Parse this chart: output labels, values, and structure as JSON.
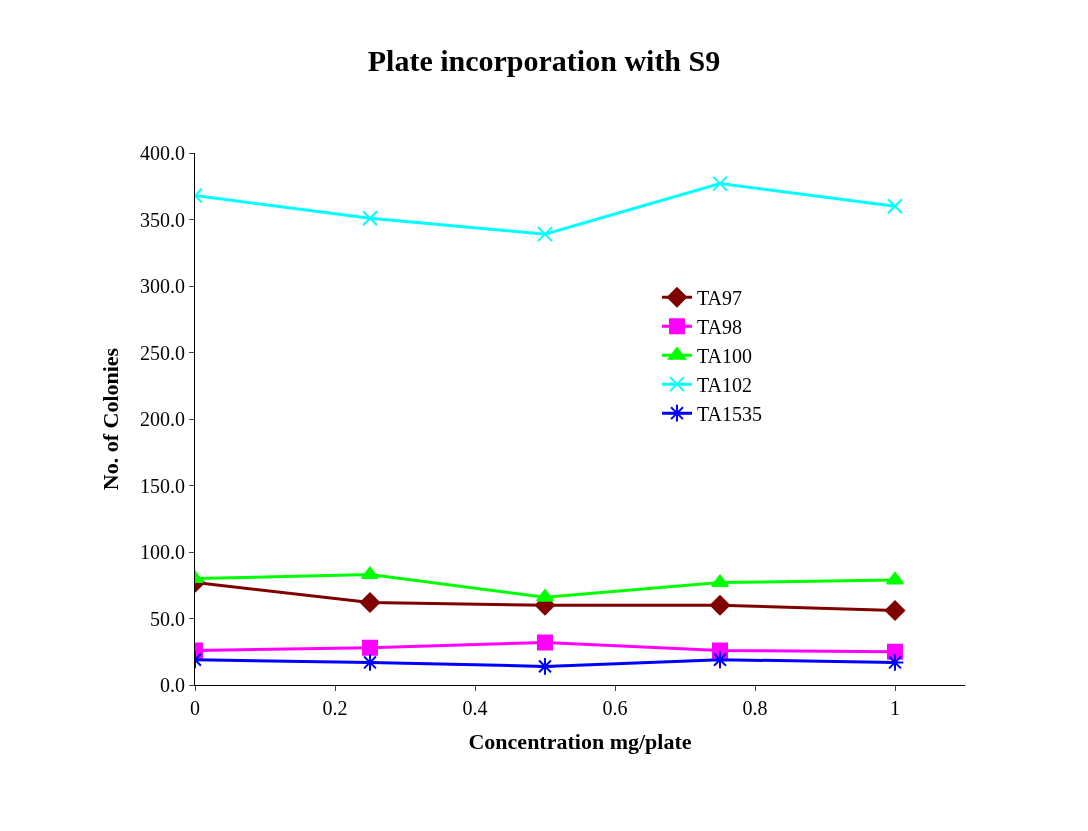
{
  "chart_data": {
    "type": "line",
    "title": "Plate incorporation with S9",
    "xlabel": "Concentration mg/plate",
    "ylabel": "No. of Colonies",
    "x": [
      0,
      0.25,
      0.5,
      0.75,
      1
    ],
    "series": [
      {
        "name": "TA97",
        "color": "#800000",
        "marker": "diamond",
        "values": [
          77,
          62,
          60,
          60,
          56
        ]
      },
      {
        "name": "TA98",
        "color": "#ff00ff",
        "marker": "square",
        "values": [
          26,
          28,
          32,
          26,
          25
        ]
      },
      {
        "name": "TA100",
        "color": "#00ff00",
        "marker": "triangle",
        "values": [
          80,
          83,
          66,
          77,
          79
        ]
      },
      {
        "name": "TA102",
        "color": "#00ffff",
        "marker": "cross",
        "values": [
          368,
          351,
          339,
          377,
          360
        ]
      },
      {
        "name": "TA1535",
        "color": "#0000ff",
        "marker": "cross",
        "values": [
          19,
          17,
          14,
          19,
          17
        ]
      }
    ],
    "xlim": [
      0,
      1.1
    ],
    "xticks": [
      0,
      0.2,
      0.4,
      0.6,
      0.8,
      1
    ],
    "ylim": [
      0,
      400
    ],
    "yticks": [
      {
        "value": 0,
        "label": "0.0"
      },
      {
        "value": 50,
        "label": "50.0"
      },
      {
        "value": 100,
        "label": "100.0"
      },
      {
        "value": 150,
        "label": "150.0"
      },
      {
        "value": 200,
        "label": "200.0"
      },
      {
        "value": 250,
        "label": "250.0"
      },
      {
        "value": 300,
        "label": "300.0"
      },
      {
        "value": 350,
        "label": "350.0"
      },
      {
        "value": 400,
        "label": "400.0"
      }
    ],
    "legend": "right"
  }
}
